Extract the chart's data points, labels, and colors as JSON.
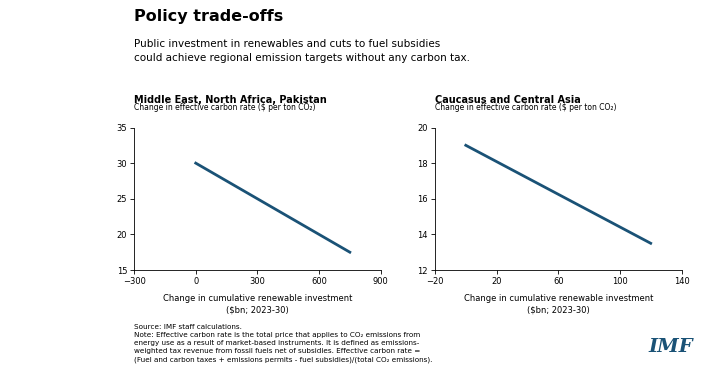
{
  "title": "Policy trade-offs",
  "subtitle": "Public investment in renewables and cuts to fuel subsidies\ncould achieve regional emission targets without any carbon tax.",
  "panel1": {
    "title": "Middle East, North Africa, Pakistan",
    "ylabel": "Change in effective carbon rate ($ per ton CO₂)",
    "xlabel": "Change in cumulative renewable investment\n($bn; 2023-30)",
    "x": [
      0,
      750
    ],
    "y": [
      30.0,
      17.5
    ],
    "xlim": [
      -300,
      900
    ],
    "ylim": [
      15,
      35
    ],
    "xticks": [
      -300,
      0,
      300,
      600,
      900
    ],
    "yticks": [
      15,
      20,
      25,
      30,
      35
    ]
  },
  "panel2": {
    "title": "Caucasus and Central Asia",
    "ylabel": "Change in effective carbon rate ($ per ton CO₂)",
    "xlabel": "Change in cumulative renewable investment\n($bn; 2023-30)",
    "x": [
      0,
      120
    ],
    "y": [
      19.0,
      13.5
    ],
    "xlim": [
      -20,
      140
    ],
    "ylim": [
      12,
      20
    ],
    "xticks": [
      -20,
      20,
      60,
      100,
      140
    ],
    "yticks": [
      12,
      14,
      16,
      18,
      20
    ]
  },
  "line_color": "#1a5276",
  "line_width": 2.0,
  "source_text": "Source: IMF staff calculations.\nNote: Effective carbon rate is the total price that applies to CO₂ emissions from\nenergy use as a result of market-based instruments. It is defined as emissions-\nweighted tax revenue from fossil fuels net of subsidies. Effective carbon rate =\n(Fuel and carbon taxes + emissions permits - fuel subsidies)/(total CO₂ emissions).",
  "imf_color": "#1a5276",
  "bg_color": "#ffffff"
}
